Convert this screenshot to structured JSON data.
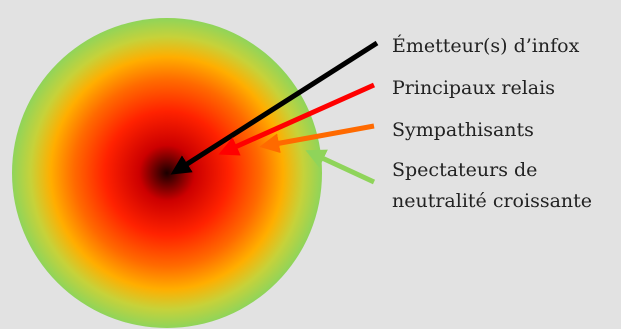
{
  "diagram": {
    "layers": [
      {
        "label": "Émetteur(s) d’infox",
        "color": "#000000"
      },
      {
        "label": "Principaux relais",
        "color": "#ff0000"
      },
      {
        "label": "Sympathisants",
        "color": "#ff6a00"
      },
      {
        "label": "Spectateurs de",
        "label_line2": "neutralité croissante",
        "color": "#8fd45a"
      }
    ],
    "gradient_colors": [
      "#1a0000",
      "#cc0000",
      "#ff2200",
      "#ff6a00",
      "#ffae00",
      "#c6d23a",
      "#8fd45a"
    ]
  }
}
